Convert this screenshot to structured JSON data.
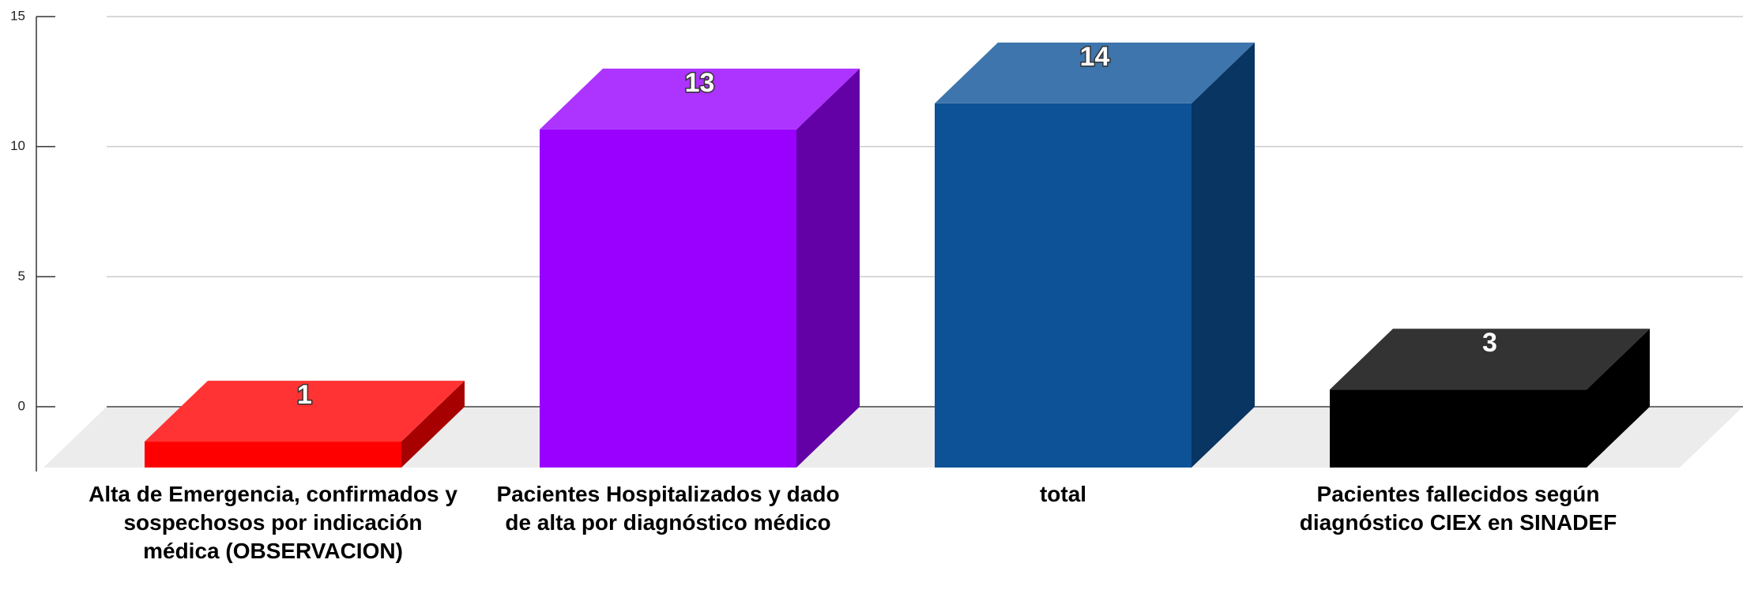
{
  "chart_data": {
    "type": "bar3d",
    "categories": [
      "Alta de Emergencia, confirmados y sospechosos por indicación médica (OBSERVACION)",
      "Pacientes Hospitalizados y dado de alta por diagnóstico médico",
      "total",
      "Pacientes fallecidos según diagnóstico CIEX en SINADEF"
    ],
    "values": [
      1,
      13,
      14,
      3
    ],
    "colors": [
      "#ff0000",
      "#9900ff",
      "#0d5297",
      "#000000"
    ],
    "ylim": [
      0,
      15
    ],
    "yticks": [
      0,
      5,
      10,
      15
    ],
    "grid": true
  }
}
